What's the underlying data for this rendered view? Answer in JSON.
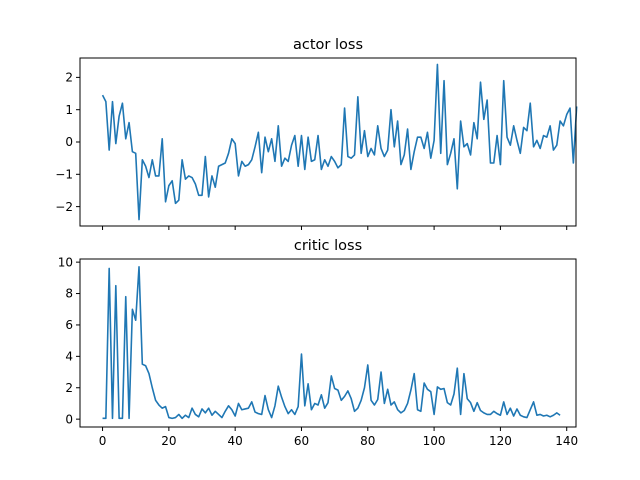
{
  "chart_data": [
    {
      "type": "line",
      "title": "actor loss",
      "xlabel": "",
      "ylabel": "",
      "xlim": [
        -6.8,
        142.8
      ],
      "ylim": [
        -2.6,
        2.6
      ],
      "xticks": [
        0,
        20,
        40,
        60,
        80,
        100,
        120,
        140
      ],
      "xtick_labels_visible": false,
      "yticks": [
        -2,
        -1,
        0,
        1,
        2
      ],
      "ytick_labels": [
        "−2",
        "−1",
        "0",
        "1",
        "2"
      ],
      "grid": false,
      "color": "#1f77b4",
      "x_start": 0,
      "x_step": 1,
      "values": [
        1.45,
        1.25,
        -0.25,
        1.25,
        -0.05,
        0.8,
        1.2,
        0.1,
        0.6,
        -0.3,
        -0.35,
        -2.4,
        -0.55,
        -0.75,
        -1.1,
        -0.55,
        -1.05,
        -1.05,
        0.1,
        -1.85,
        -1.35,
        -1.2,
        -1.9,
        -1.8,
        -0.55,
        -1.15,
        -1.05,
        -1.1,
        -1.3,
        -1.65,
        -1.65,
        -0.45,
        -1.7,
        -1.05,
        -1.4,
        -0.75,
        -0.7,
        -0.65,
        -0.35,
        0.1,
        -0.05,
        -1.05,
        -0.6,
        -0.75,
        -0.7,
        -0.55,
        -0.15,
        0.3,
        -0.95,
        0.15,
        -0.3,
        0.1,
        -0.6,
        0.5,
        -0.75,
        -0.5,
        -0.6,
        -0.1,
        0.2,
        -0.75,
        0.2,
        -0.85,
        0.15,
        -0.6,
        -0.55,
        0.2,
        -0.85,
        -0.55,
        -0.75,
        -0.45,
        -0.6,
        -0.8,
        -0.7,
        1.05,
        -0.45,
        -0.5,
        -0.4,
        1.4,
        -0.35,
        0.35,
        -0.45,
        -0.2,
        -0.4,
        0.5,
        -0.2,
        -0.45,
        -0.25,
        1.0,
        -0.15,
        0.65,
        -0.7,
        -0.4,
        0.4,
        -0.85,
        -0.3,
        0.15,
        0.15,
        -0.2,
        0.3,
        -0.5,
        0.05,
        2.4,
        -0.35,
        1.9,
        -0.7,
        -0.35,
        0.1,
        -1.45,
        0.65,
        -0.15,
        -0.05,
        -0.4,
        0.6,
        0.1,
        1.85,
        0.7,
        1.3,
        -0.65,
        -0.65,
        0.2,
        -0.7,
        1.9,
        0.15,
        -0.1,
        0.5,
        0.05,
        -0.35,
        0.45,
        0.35,
        1.2,
        -0.15,
        0.05,
        -0.2,
        0.2,
        0.15,
        0.5,
        -0.25,
        -0.1,
        0.65,
        0.5,
        0.85,
        1.05,
        -0.65,
        1.1
      ]
    },
    {
      "type": "line",
      "title": "critic loss",
      "xlabel": "",
      "ylabel": "",
      "xlim": [
        -6.8,
        142.8
      ],
      "ylim": [
        -0.5,
        10.2
      ],
      "xticks": [
        0,
        20,
        40,
        60,
        80,
        100,
        120,
        140
      ],
      "xtick_labels": [
        "0",
        "20",
        "40",
        "60",
        "80",
        "100",
        "120",
        "140"
      ],
      "yticks": [
        0,
        2,
        4,
        6,
        8,
        10
      ],
      "ytick_labels": [
        "0",
        "2",
        "4",
        "6",
        "8",
        "10"
      ],
      "grid": false,
      "color": "#1f77b4",
      "x_start": 0,
      "x_step": 1,
      "values": [
        0.05,
        0.05,
        9.6,
        0.05,
        8.5,
        0.05,
        0.05,
        7.8,
        0.05,
        7.0,
        6.3,
        9.7,
        3.5,
        3.4,
        2.9,
        2.0,
        1.2,
        0.9,
        0.7,
        0.8,
        0.1,
        0.05,
        0.1,
        0.3,
        0.05,
        0.25,
        0.1,
        0.7,
        0.3,
        0.15,
        0.65,
        0.4,
        0.7,
        0.25,
        0.5,
        0.3,
        0.1,
        0.5,
        0.85,
        0.6,
        0.2,
        1.0,
        0.6,
        0.65,
        0.7,
        1.1,
        0.45,
        0.35,
        0.3,
        1.5,
        0.6,
        0.1,
        0.85,
        2.1,
        1.4,
        0.8,
        0.35,
        0.6,
        0.3,
        0.8,
        4.15,
        0.85,
        2.25,
        0.6,
        1.0,
        0.9,
        1.55,
        0.7,
        1.05,
        2.75,
        1.95,
        1.85,
        1.2,
        1.45,
        1.8,
        1.3,
        0.5,
        0.7,
        1.2,
        2.0,
        3.45,
        1.2,
        0.9,
        1.25,
        3.0,
        1.0,
        1.9,
        0.9,
        1.1,
        0.6,
        0.4,
        0.55,
        1.0,
        1.85,
        2.9,
        0.6,
        0.5,
        2.3,
        1.9,
        1.75,
        0.3,
        2.05,
        1.9,
        1.95,
        1.05,
        0.9,
        1.6,
        3.25,
        0.3,
        2.9,
        1.3,
        1.05,
        0.5,
        1.05,
        0.55,
        0.4,
        0.3,
        0.3,
        0.5,
        0.35,
        0.25,
        1.1,
        0.3,
        0.7,
        0.2,
        0.65,
        0.25,
        0.15,
        0.1,
        0.6,
        1.1,
        0.25,
        0.3,
        0.2,
        0.25,
        0.15,
        0.25,
        0.4,
        0.25
      ]
    }
  ]
}
